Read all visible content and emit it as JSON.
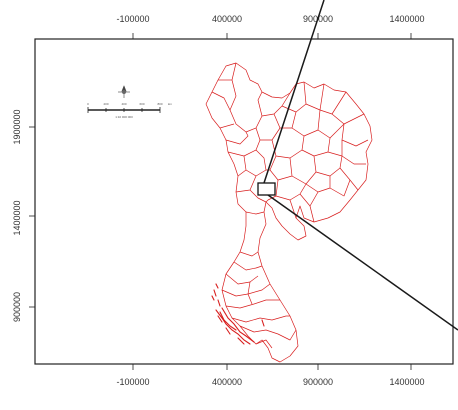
{
  "map": {
    "top_ticks": [
      "-100000",
      "400000",
      "900000",
      "1400000"
    ],
    "bottom_ticks": [
      "-100000",
      "400000",
      "900000",
      "1400000"
    ],
    "left_ticks": [
      "1900000",
      "1400000",
      "900000"
    ],
    "colors": {
      "boundaries": "#d81e1e",
      "frame": "#222222",
      "callout": "#1a1a1a",
      "background": "#ffffff"
    },
    "north_arrow_icon": "compass-rose-icon",
    "scale_bar_ticks": [
      "0",
      "200",
      "400",
      "600",
      "800"
    ],
    "scale_bar_unit": "km",
    "scale_bar_caption": "1:10 000 000"
  }
}
